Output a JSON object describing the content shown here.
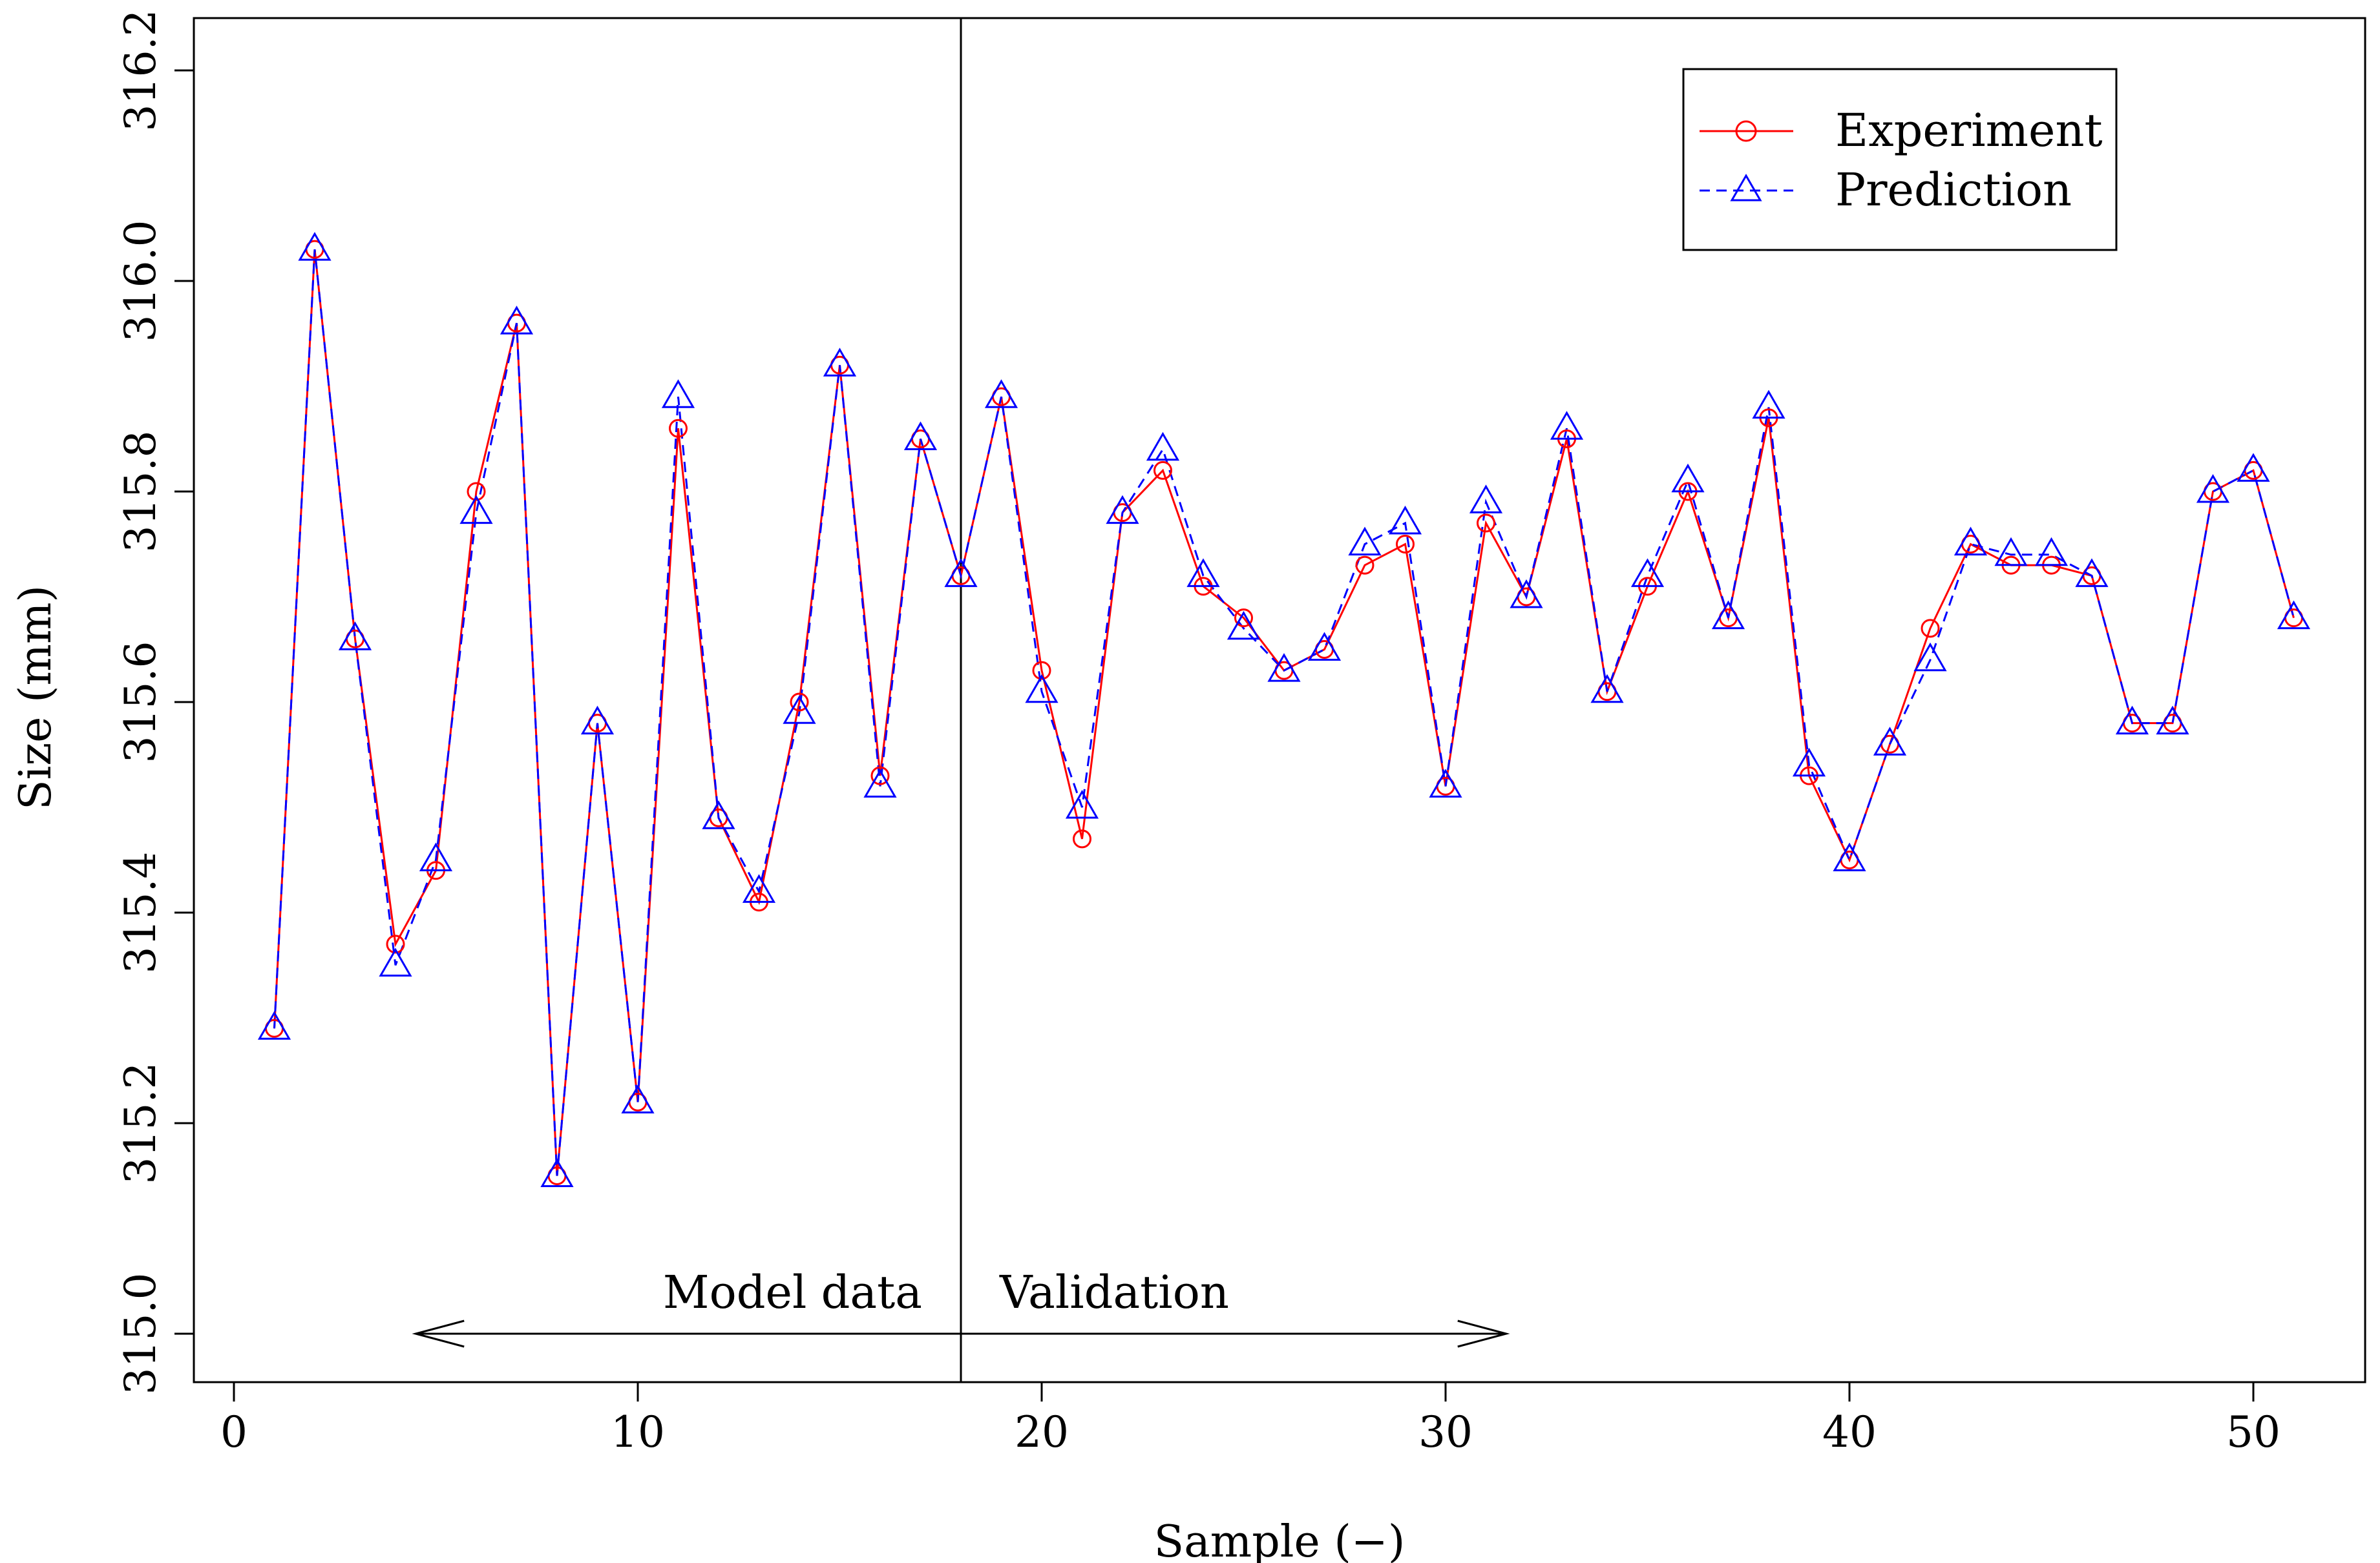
{
  "chart_data": {
    "type": "line",
    "title": "",
    "xlabel": "Sample (−)",
    "ylabel": "Size (mm)",
    "xlim": [
      -1,
      53
    ],
    "ylim": [
      314.95,
      316.24
    ],
    "xticks": [
      0,
      10,
      20,
      30,
      40,
      50
    ],
    "yticks": [
      315.0,
      315.2,
      315.4,
      315.6,
      315.8,
      316.0,
      316.2
    ],
    "ytick_labels": [
      "315.0",
      "315.2",
      "315.4",
      "315.6",
      "315.8",
      "316.0",
      "316.2"
    ],
    "legend_position": "top-right",
    "grid": false,
    "x": [
      1,
      2,
      3,
      4,
      5,
      6,
      7,
      8,
      9,
      10,
      11,
      12,
      13,
      14,
      15,
      16,
      17,
      18,
      19,
      20,
      21,
      22,
      23,
      24,
      25,
      26,
      27,
      28,
      29,
      30,
      31,
      32,
      33,
      34,
      35,
      36,
      37,
      38,
      39,
      40,
      41,
      42,
      43,
      44,
      45,
      46,
      47,
      48,
      49,
      50,
      51
    ],
    "series": [
      {
        "name": "Experiment",
        "color": "#ff0000",
        "marker": "circle",
        "line_style": "solid",
        "values": [
          315.29,
          316.03,
          315.66,
          315.37,
          315.44,
          315.8,
          315.96,
          315.15,
          315.58,
          315.22,
          315.86,
          315.49,
          315.41,
          315.6,
          315.92,
          315.53,
          315.85,
          315.72,
          315.89,
          315.63,
          315.47,
          315.78,
          315.82,
          315.71,
          315.68,
          315.63,
          315.65,
          315.73,
          315.75,
          315.52,
          315.77,
          315.7,
          315.85,
          315.61,
          315.71,
          315.8,
          315.68,
          315.87,
          315.53,
          315.45,
          315.56,
          315.67,
          315.75,
          315.73,
          315.73,
          315.72,
          315.58,
          315.58,
          315.8,
          315.82,
          315.68
        ]
      },
      {
        "name": "Prediction",
        "color": "#0000ff",
        "marker": "triangle",
        "line_style": "dashed",
        "values": [
          315.29,
          316.03,
          315.66,
          315.35,
          315.45,
          315.78,
          315.96,
          315.15,
          315.58,
          315.22,
          315.89,
          315.49,
          315.42,
          315.59,
          315.92,
          315.52,
          315.85,
          315.72,
          315.89,
          315.61,
          315.5,
          315.78,
          315.84,
          315.72,
          315.67,
          315.63,
          315.65,
          315.75,
          315.77,
          315.52,
          315.79,
          315.7,
          315.86,
          315.61,
          315.72,
          315.81,
          315.68,
          315.88,
          315.54,
          315.45,
          315.56,
          315.64,
          315.75,
          315.74,
          315.74,
          315.72,
          315.58,
          315.58,
          315.8,
          315.82,
          315.68
        ]
      }
    ],
    "annotations": {
      "split_at": 18,
      "left_label": "Model data",
      "right_label": "Validation",
      "arrow_y": 315.0,
      "arrow_from": 4.5,
      "arrow_to": 31.5
    }
  }
}
